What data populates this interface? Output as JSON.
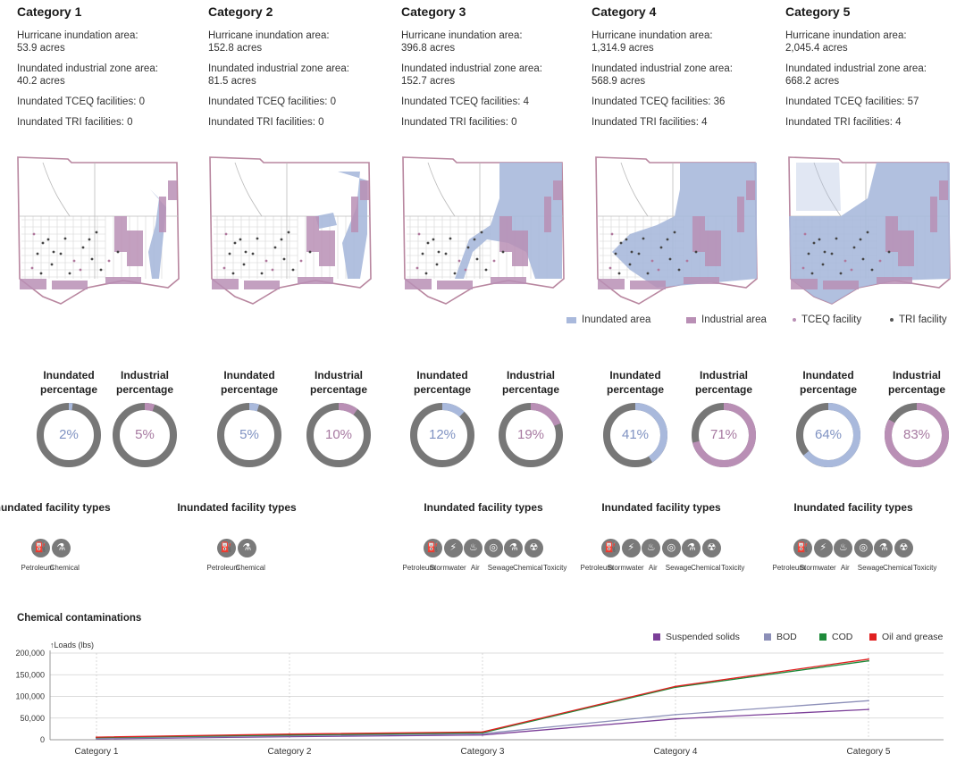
{
  "categories": [
    {
      "title": "Category 1",
      "stats": [
        "Hurricane inundation area:",
        "53.9 acres",
        "Inundated industrial zone area:",
        "40.2 acres",
        "Inundated TCEQ facilities: 0",
        "Inundated TRI facilities: 0"
      ],
      "inundated_pct": 2,
      "industrial_pct": 5,
      "inundated_pct_label": "2%",
      "industrial_pct_label": "5%",
      "facility_types": [
        "Petroleum",
        "Chemical"
      ]
    },
    {
      "title": "Category 2",
      "stats": [
        "Hurricane inundation area:",
        "152.8 acres",
        "Inundated industrial zone area:",
        "81.5 acres",
        "Inundated TCEQ facilities: 0",
        "Inundated TRI facilities: 0"
      ],
      "inundated_pct": 5,
      "industrial_pct": 10,
      "inundated_pct_label": "5%",
      "industrial_pct_label": "10%",
      "facility_types": [
        "Petroleum",
        "Chemical"
      ]
    },
    {
      "title": "Category 3",
      "stats": [
        "Hurricane inundation area:",
        "396.8 acres",
        "Inundated industrial zone area:",
        "152.7 acres",
        "Inundated TCEQ facilities: 4",
        "Inundated TRI facilities: 0"
      ],
      "inundated_pct": 12,
      "industrial_pct": 19,
      "inundated_pct_label": "12%",
      "industrial_pct_label": "19%",
      "facility_types": [
        "Petroleum",
        "Stormwater",
        "Air",
        "Sewage",
        "Chemical",
        "Toxicity"
      ]
    },
    {
      "title": "Category 4",
      "stats": [
        "Hurricane inundation area:",
        "1,314.9 acres",
        "Inundated industrial zone area:",
        "568.9 acres",
        "Inundated TCEQ facilities: 36",
        "Inundated TRI facilities: 4"
      ],
      "inundated_pct": 41,
      "industrial_pct": 71,
      "inundated_pct_label": "41%",
      "industrial_pct_label": "71%",
      "facility_types": [
        "Petroleum",
        "Stormwater",
        "Air",
        "Sewage",
        "Chemical",
        "Toxicity"
      ]
    },
    {
      "title": "Category 5",
      "stats": [
        "Hurricane inundation area:",
        "2,045.4 acres",
        "Inundated industrial zone area:",
        "668.2 acres",
        "Inundated TCEQ facilities: 57",
        "Inundated TRI facilities: 4"
      ],
      "inundated_pct": 64,
      "industrial_pct": 83,
      "inundated_pct_label": "64%",
      "industrial_pct_label": "83%",
      "facility_types": [
        "Petroleum",
        "Stormwater",
        "Air",
        "Sewage",
        "Chemical",
        "Toxicity"
      ]
    }
  ],
  "labels": {
    "inundated_percentage": "Inundated percentage",
    "industrial_percentage": "Industrial percentage",
    "inundated_facility_types": "Inundated facility types"
  },
  "map_legend": {
    "inundated": "Inundated area",
    "industrial": "Industrial area",
    "tceq": "TCEQ facility",
    "tri": "TRI facility"
  },
  "colors": {
    "inundated": "#a9b9dc",
    "industrial": "#b98fb5",
    "donut_track": "#777777",
    "suspended_solids": "#7b3f98",
    "bod": "#8c8fb8",
    "cod": "#1e8a3a",
    "oil_grease": "#e02020"
  },
  "icons": {
    "Petroleum": "petroleum-icon",
    "Stormwater": "stormwater-icon",
    "Air": "air-icon",
    "Sewage": "sewage-icon",
    "Chemical": "chemical-icon",
    "Toxicity": "toxicity-icon"
  },
  "chart_data": {
    "type": "line",
    "title": "Chemical contaminations",
    "ylabel": "Loads (lbs)",
    "xlabel": "",
    "categories": [
      "Category 1",
      "Category 2",
      "Category 3",
      "Category 4",
      "Category 5"
    ],
    "ylim": [
      0,
      200000
    ],
    "yticks": [
      "0",
      "50,000",
      "100,000",
      "150,000",
      "200,000"
    ],
    "ytick_values": [
      0,
      50000,
      100000,
      150000,
      200000
    ],
    "series": [
      {
        "name": "Suspended solids",
        "values": [
          2000,
          7000,
          11000,
          48000,
          70000
        ]
      },
      {
        "name": "BOD",
        "values": [
          3000,
          9000,
          14000,
          58000,
          90000
        ]
      },
      {
        "name": "COD",
        "values": [
          5000,
          11000,
          16000,
          121000,
          182000
        ]
      },
      {
        "name": "Oil and grease",
        "values": [
          6000,
          13000,
          18000,
          123000,
          186000
        ]
      }
    ]
  }
}
